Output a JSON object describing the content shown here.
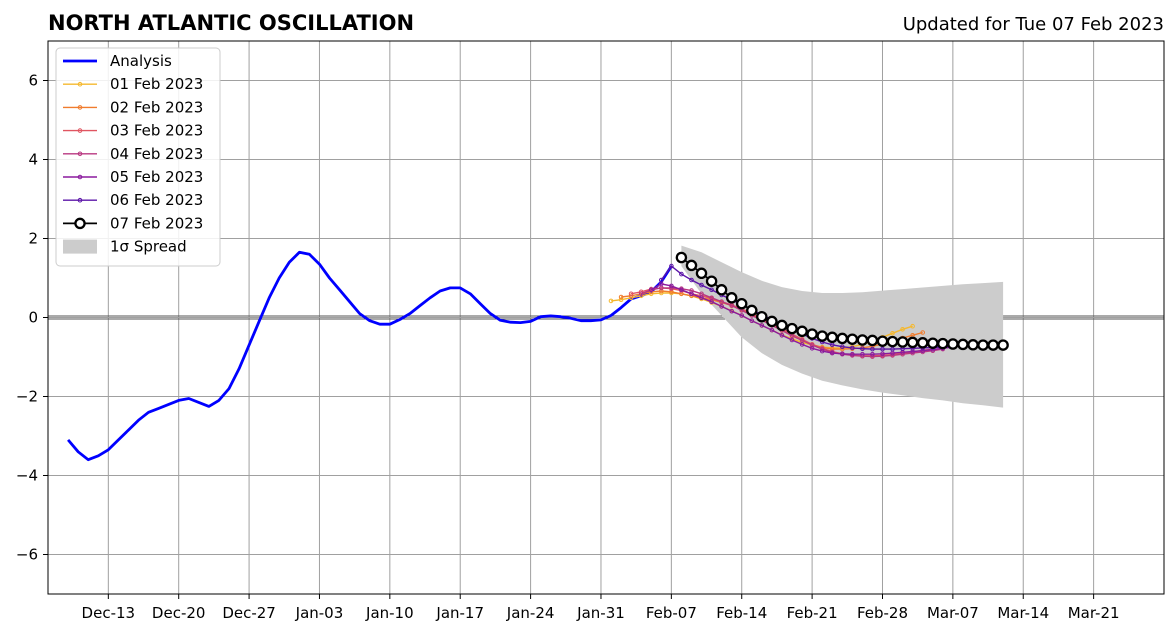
{
  "chart_data": {
    "type": "line",
    "title": "NORTH ATLANTIC OSCILLATION",
    "subtitle": "Updated for Tue 07 Feb 2023",
    "xlabel": "",
    "ylabel": "",
    "xlim": [
      "2022-12-07",
      "2023-03-28"
    ],
    "ylim": [
      -7,
      7
    ],
    "grid": true,
    "legend_placement": "top-left",
    "x_ticks": [
      "Dec-13",
      "Dec-20",
      "Dec-27",
      "Jan-03",
      "Jan-10",
      "Jan-17",
      "Jan-24",
      "Jan-31",
      "Feb-07",
      "Feb-14",
      "Feb-21",
      "Feb-28",
      "Mar-07",
      "Mar-14",
      "Mar-21"
    ],
    "y_ticks": [
      "−6",
      "−4",
      "−2",
      "0",
      "2",
      "4",
      "6"
    ],
    "analysis": {
      "name": "Analysis",
      "color": "#0000ff",
      "start": "2022-12-09",
      "values": [
        -3.1,
        -3.4,
        -3.6,
        -3.5,
        -3.35,
        -3.1,
        -2.85,
        -2.6,
        -2.4,
        -2.3,
        -2.2,
        -2.1,
        -2.05,
        -2.15,
        -2.25,
        -2.1,
        -1.8,
        -1.3,
        -0.7,
        -0.1,
        0.5,
        1.0,
        1.4,
        1.65,
        1.6,
        1.35,
        1.0,
        0.7,
        0.4,
        0.1,
        -0.08,
        -0.17,
        -0.17,
        -0.05,
        0.1,
        0.3,
        0.5,
        0.67,
        0.75,
        0.75,
        0.6,
        0.35,
        0.1,
        -0.07,
        -0.12,
        -0.13,
        -0.1,
        0.02,
        0.04,
        0.02,
        -0.02,
        -0.08,
        -0.08,
        -0.06,
        0.05,
        0.25,
        0.47,
        0.55,
        0.65,
        0.9,
        1.3
      ]
    },
    "forecasts": [
      {
        "name": "01 Feb 2023",
        "color": "#f5b82e",
        "start": "2023-02-01",
        "values": [
          0.42,
          0.45,
          0.5,
          0.55,
          0.6,
          0.62,
          0.62,
          0.6,
          0.55,
          0.47,
          0.38,
          0.28,
          0.17,
          0.05,
          -0.08,
          -0.2,
          -0.32,
          -0.44,
          -0.54,
          -0.63,
          -0.7,
          -0.75,
          -0.77,
          -0.77,
          -0.74,
          -0.68,
          -0.6,
          -0.5,
          -0.4,
          -0.3,
          -0.22
        ]
      },
      {
        "name": "02 Feb 2023",
        "color": "#f07c2e",
        "start": "2023-02-02",
        "values": [
          0.52,
          0.55,
          0.6,
          0.65,
          0.67,
          0.65,
          0.6,
          0.55,
          0.5,
          0.45,
          0.38,
          0.3,
          0.2,
          0.08,
          -0.05,
          -0.18,
          -0.32,
          -0.46,
          -0.58,
          -0.68,
          -0.76,
          -0.8,
          -0.8,
          -0.79,
          -0.77,
          -0.73,
          -0.67,
          -0.6,
          -0.52,
          -0.45,
          -0.38
        ]
      },
      {
        "name": "03 Feb 2023",
        "color": "#e05561",
        "start": "2023-02-03",
        "values": [
          0.6,
          0.65,
          0.72,
          0.75,
          0.73,
          0.68,
          0.6,
          0.55,
          0.48,
          0.4,
          0.32,
          0.22,
          0.1,
          -0.02,
          -0.15,
          -0.28,
          -0.42,
          -0.55,
          -0.68,
          -0.78,
          -0.86,
          -0.92,
          -0.95,
          -0.97,
          -0.97,
          -0.96,
          -0.94,
          -0.9,
          -0.87,
          -0.83,
          -0.8
        ]
      },
      {
        "name": "04 Feb 2023",
        "color": "#b83780",
        "start": "2023-02-04",
        "values": [
          0.6,
          0.7,
          0.75,
          0.75,
          0.73,
          0.68,
          0.6,
          0.5,
          0.4,
          0.3,
          0.18,
          0.05,
          -0.07,
          -0.2,
          -0.33,
          -0.46,
          -0.58,
          -0.7,
          -0.8,
          -0.88,
          -0.93,
          -0.96,
          -0.98,
          -0.99,
          -0.98,
          -0.96,
          -0.93,
          -0.9,
          -0.87,
          -0.84,
          -0.8
        ]
      },
      {
        "name": "05 Feb 2023",
        "color": "#8b1a9e",
        "start": "2023-02-05",
        "values": [
          0.7,
          0.85,
          0.8,
          0.7,
          0.6,
          0.5,
          0.4,
          0.28,
          0.16,
          0.05,
          -0.08,
          -0.2,
          -0.32,
          -0.45,
          -0.57,
          -0.68,
          -0.78,
          -0.85,
          -0.9,
          -0.92,
          -0.93,
          -0.93,
          -0.93,
          -0.92,
          -0.9,
          -0.88,
          -0.86,
          -0.84,
          -0.81,
          -0.78,
          -0.75
        ]
      },
      {
        "name": "06 Feb 2023",
        "color": "#5b14a8",
        "start": "2023-02-06",
        "values": [
          0.95,
          1.3,
          1.1,
          0.95,
          0.82,
          0.7,
          0.57,
          0.45,
          0.32,
          0.2,
          0.07,
          -0.05,
          -0.17,
          -0.3,
          -0.42,
          -0.53,
          -0.62,
          -0.69,
          -0.74,
          -0.77,
          -0.79,
          -0.8,
          -0.8,
          -0.8,
          -0.79,
          -0.78,
          -0.77,
          -0.76,
          -0.75,
          -0.74,
          -0.72
        ]
      }
    ],
    "current": {
      "name": "07 Feb 2023",
      "color": "#000000",
      "start": "2023-02-08",
      "values": [
        1.52,
        1.32,
        1.12,
        0.92,
        0.7,
        0.5,
        0.35,
        0.18,
        0.02,
        -0.1,
        -0.2,
        -0.28,
        -0.35,
        -0.42,
        -0.47,
        -0.5,
        -0.53,
        -0.55,
        -0.57,
        -0.58,
        -0.6,
        -0.61,
        -0.62,
        -0.63,
        -0.64,
        -0.65,
        -0.66,
        -0.67,
        -0.68,
        -0.69,
        -0.7,
        -0.7,
        -0.7
      ]
    },
    "spread": {
      "name": "1σ Spread",
      "color": "#cccccc",
      "x": [
        "2023-02-08",
        "2023-02-10",
        "2023-02-12",
        "2023-02-14",
        "2023-02-16",
        "2023-02-18",
        "2023-02-20",
        "2023-02-22",
        "2023-02-24",
        "2023-02-26",
        "2023-02-28",
        "2023-03-02",
        "2023-03-04",
        "2023-03-06",
        "2023-03-08",
        "2023-03-10",
        "2023-03-12"
      ],
      "upper": [
        1.82,
        1.65,
        1.4,
        1.15,
        0.93,
        0.77,
        0.67,
        0.62,
        0.62,
        0.64,
        0.68,
        0.72,
        0.76,
        0.8,
        0.84,
        0.87,
        0.9
      ],
      "lower": [
        1.3,
        0.6,
        0.05,
        -0.5,
        -0.9,
        -1.2,
        -1.42,
        -1.6,
        -1.72,
        -1.82,
        -1.9,
        -1.97,
        -2.04,
        -2.1,
        -2.17,
        -2.22,
        -2.28
      ]
    }
  }
}
